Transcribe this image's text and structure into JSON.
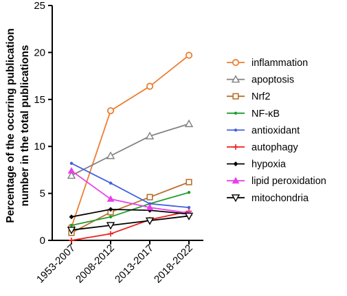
{
  "chart_data": {
    "type": "line",
    "title": "",
    "xlabel": "",
    "ylabel_lines": [
      "Percentage of the occrring publication",
      "number in the total publications"
    ],
    "categories": [
      "1953-2007",
      "2008-2012",
      "2013-2017",
      "2018-2022"
    ],
    "ylim": [
      0,
      25
    ],
    "yticks": [
      0,
      5,
      10,
      15,
      20,
      25
    ],
    "grid": false,
    "legend_position": "right",
    "series": [
      {
        "name": "inflammation",
        "color": "#ED7D31",
        "marker": "circle-open",
        "values": [
          1.4,
          13.8,
          16.4,
          19.7
        ]
      },
      {
        "name": "apoptosis",
        "color": "#808080",
        "marker": "triangle-open",
        "values": [
          6.9,
          9.0,
          11.1,
          12.4
        ]
      },
      {
        "name": "Nrf2",
        "color": "#B8702A",
        "marker": "square-open",
        "values": [
          0.8,
          3.0,
          4.6,
          6.2
        ]
      },
      {
        "name": "NF-κB",
        "color": "#1E9E2E",
        "marker": "dot",
        "values": [
          1.6,
          2.5,
          3.9,
          5.1
        ]
      },
      {
        "name": "antioxidant",
        "color": "#3F5FE0",
        "marker": "dot",
        "values": [
          8.2,
          6.1,
          3.9,
          3.5
        ]
      },
      {
        "name": "autophagy",
        "color": "#EE1C1C",
        "marker": "plus",
        "values": [
          0.0,
          0.7,
          2.2,
          3.1
        ]
      },
      {
        "name": "hypoxia",
        "color": "#000000",
        "marker": "diamond",
        "values": [
          2.5,
          3.3,
          3.2,
          2.8
        ]
      },
      {
        "name": "lipid peroxidation",
        "color": "#E83FE8",
        "marker": "triangle-filled",
        "values": [
          7.4,
          4.4,
          3.5,
          2.9
        ]
      },
      {
        "name": "mitochondria",
        "color": "#000000",
        "marker": "triangle-down-open",
        "values": [
          1.1,
          1.6,
          2.1,
          2.6
        ]
      }
    ]
  }
}
